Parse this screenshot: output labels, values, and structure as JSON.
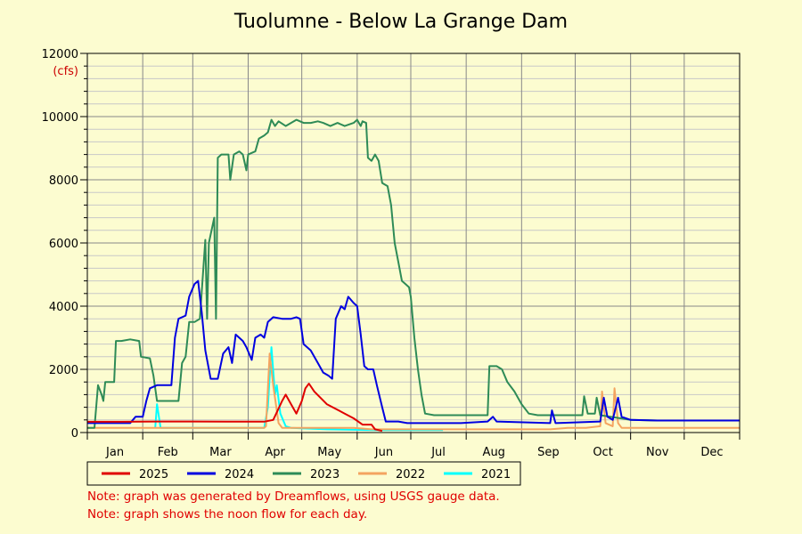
{
  "chart_data": {
    "type": "line",
    "title": "Tuolumne - Below La Grange Dam",
    "ylabel": "(cfs)",
    "ylim": [
      0,
      12000
    ],
    "yticks": [
      0,
      2000,
      4000,
      6000,
      8000,
      10000,
      12000
    ],
    "xlabels": [
      "Jan",
      "Feb",
      "Mar",
      "Apr",
      "May",
      "Jun",
      "Jul",
      "Aug",
      "Sep",
      "Oct",
      "Nov",
      "Dec"
    ],
    "grid": true,
    "legend_position": "bottom",
    "x_unit": "day of year",
    "xlim": [
      1,
      366
    ],
    "series": [
      {
        "name": "2025",
        "color": "#e00000",
        "points": [
          [
            1,
            340
          ],
          [
            20,
            340
          ],
          [
            40,
            350
          ],
          [
            60,
            350
          ],
          [
            80,
            345
          ],
          [
            100,
            345
          ],
          [
            105,
            400
          ],
          [
            110,
            1000
          ],
          [
            112,
            1200
          ],
          [
            115,
            900
          ],
          [
            118,
            600
          ],
          [
            121,
            1000
          ],
          [
            123,
            1400
          ],
          [
            125,
            1550
          ],
          [
            128,
            1300
          ],
          [
            135,
            900
          ],
          [
            145,
            600
          ],
          [
            150,
            450
          ],
          [
            155,
            250
          ],
          [
            160,
            250
          ],
          [
            162,
            100
          ],
          [
            166,
            50
          ]
        ]
      },
      {
        "name": "2024",
        "color": "#0000e0",
        "points": [
          [
            1,
            300
          ],
          [
            25,
            300
          ],
          [
            28,
            500
          ],
          [
            32,
            500
          ],
          [
            34,
            1000
          ],
          [
            36,
            1400
          ],
          [
            40,
            1500
          ],
          [
            48,
            1500
          ],
          [
            50,
            3000
          ],
          [
            52,
            3600
          ],
          [
            56,
            3700
          ],
          [
            58,
            4300
          ],
          [
            61,
            4700
          ],
          [
            63,
            4800
          ],
          [
            65,
            3800
          ],
          [
            67,
            2600
          ],
          [
            70,
            1700
          ],
          [
            74,
            1700
          ],
          [
            77,
            2500
          ],
          [
            80,
            2700
          ],
          [
            82,
            2200
          ],
          [
            84,
            3100
          ],
          [
            88,
            2900
          ],
          [
            90,
            2700
          ],
          [
            93,
            2300
          ],
          [
            95,
            3000
          ],
          [
            98,
            3100
          ],
          [
            100,
            3000
          ],
          [
            102,
            3500
          ],
          [
            105,
            3650
          ],
          [
            110,
            3600
          ],
          [
            115,
            3600
          ],
          [
            118,
            3650
          ],
          [
            120,
            3600
          ],
          [
            122,
            2800
          ],
          [
            126,
            2600
          ],
          [
            130,
            2200
          ],
          [
            133,
            1900
          ],
          [
            136,
            1800
          ],
          [
            138,
            1700
          ],
          [
            140,
            3600
          ],
          [
            143,
            4000
          ],
          [
            145,
            3900
          ],
          [
            147,
            4300
          ],
          [
            150,
            4100
          ],
          [
            152,
            4000
          ],
          [
            154,
            3100
          ],
          [
            156,
            2100
          ],
          [
            158,
            2000
          ],
          [
            161,
            2000
          ],
          [
            163,
            1500
          ],
          [
            166,
            800
          ],
          [
            168,
            350
          ],
          [
            175,
            350
          ],
          [
            180,
            300
          ],
          [
            210,
            300
          ],
          [
            225,
            350
          ],
          [
            228,
            500
          ],
          [
            230,
            350
          ],
          [
            260,
            300
          ],
          [
            261,
            700
          ],
          [
            263,
            300
          ],
          [
            288,
            350
          ],
          [
            290,
            1100
          ],
          [
            292,
            500
          ],
          [
            295,
            400
          ],
          [
            298,
            1100
          ],
          [
            300,
            500
          ],
          [
            305,
            400
          ],
          [
            320,
            380
          ],
          [
            340,
            380
          ],
          [
            366,
            380
          ]
        ]
      },
      {
        "name": "2023",
        "color": "#2e8b57",
        "points": [
          [
            1,
            150
          ],
          [
            5,
            150
          ],
          [
            7,
            1500
          ],
          [
            9,
            1200
          ],
          [
            10,
            1000
          ],
          [
            11,
            1600
          ],
          [
            14,
            1600
          ],
          [
            16,
            1600
          ],
          [
            17,
            2900
          ],
          [
            20,
            2900
          ],
          [
            25,
            2950
          ],
          [
            30,
            2900
          ],
          [
            31,
            2400
          ],
          [
            36,
            2350
          ],
          [
            38,
            1800
          ],
          [
            40,
            1000
          ],
          [
            42,
            1000
          ],
          [
            48,
            1000
          ],
          [
            52,
            1000
          ],
          [
            54,
            2200
          ],
          [
            56,
            2400
          ],
          [
            58,
            3500
          ],
          [
            61,
            3500
          ],
          [
            64,
            3600
          ],
          [
            67,
            6100
          ],
          [
            68,
            3600
          ],
          [
            69,
            6000
          ],
          [
            72,
            6800
          ],
          [
            73,
            3600
          ],
          [
            74,
            8700
          ],
          [
            76,
            8800
          ],
          [
            80,
            8800
          ],
          [
            81,
            8000
          ],
          [
            83,
            8800
          ],
          [
            86,
            8900
          ],
          [
            88,
            8800
          ],
          [
            90,
            8300
          ],
          [
            91,
            8800
          ],
          [
            95,
            8900
          ],
          [
            97,
            9300
          ],
          [
            100,
            9400
          ],
          [
            102,
            9500
          ],
          [
            104,
            9900
          ],
          [
            106,
            9700
          ],
          [
            108,
            9850
          ],
          [
            112,
            9700
          ],
          [
            115,
            9800
          ],
          [
            118,
            9900
          ],
          [
            122,
            9800
          ],
          [
            126,
            9800
          ],
          [
            130,
            9850
          ],
          [
            133,
            9800
          ],
          [
            137,
            9700
          ],
          [
            141,
            9800
          ],
          [
            145,
            9700
          ],
          [
            150,
            9800
          ],
          [
            152,
            9900
          ],
          [
            154,
            9700
          ],
          [
            155,
            9850
          ],
          [
            157,
            9800
          ],
          [
            158,
            8700
          ],
          [
            160,
            8600
          ],
          [
            162,
            8800
          ],
          [
            164,
            8600
          ],
          [
            166,
            7900
          ],
          [
            169,
            7800
          ],
          [
            171,
            7200
          ],
          [
            173,
            6000
          ],
          [
            175,
            5400
          ],
          [
            177,
            4800
          ],
          [
            179,
            4700
          ],
          [
            181,
            4600
          ],
          [
            182,
            4300
          ],
          [
            184,
            3000
          ],
          [
            186,
            2000
          ],
          [
            188,
            1200
          ],
          [
            190,
            600
          ],
          [
            195,
            550
          ],
          [
            220,
            550
          ],
          [
            225,
            550
          ],
          [
            226,
            2100
          ],
          [
            230,
            2100
          ],
          [
            233,
            2000
          ],
          [
            236,
            1600
          ],
          [
            240,
            1300
          ],
          [
            244,
            900
          ],
          [
            248,
            600
          ],
          [
            253,
            550
          ],
          [
            278,
            550
          ],
          [
            279,
            1150
          ],
          [
            281,
            600
          ],
          [
            285,
            600
          ],
          [
            286,
            1100
          ],
          [
            288,
            550
          ],
          [
            305,
            400
          ],
          [
            320,
            380
          ],
          [
            340,
            380
          ],
          [
            366,
            380
          ]
        ]
      },
      {
        "name": "2022",
        "color": "#f4a460",
        "points": [
          [
            1,
            150
          ],
          [
            60,
            150
          ],
          [
            100,
            150
          ],
          [
            101,
            200
          ],
          [
            103,
            2500
          ],
          [
            105,
            1500
          ],
          [
            108,
            300
          ],
          [
            110,
            150
          ],
          [
            150,
            150
          ],
          [
            160,
            100
          ],
          [
            170,
            100
          ],
          [
            200,
            100
          ],
          [
            260,
            100
          ],
          [
            270,
            150
          ],
          [
            280,
            150
          ],
          [
            288,
            200
          ],
          [
            289,
            1300
          ],
          [
            291,
            300
          ],
          [
            295,
            200
          ],
          [
            296,
            1400
          ],
          [
            298,
            300
          ],
          [
            300,
            150
          ],
          [
            366,
            150
          ]
        ]
      },
      {
        "name": "2021",
        "color": "#00ffff",
        "points": [
          [
            39,
            150
          ],
          [
            40,
            900
          ],
          [
            42,
            150
          ],
          [
            95,
            150
          ],
          [
            100,
            150
          ],
          [
            102,
            800
          ],
          [
            104,
            2700
          ],
          [
            106,
            1200
          ],
          [
            107,
            1500
          ],
          [
            109,
            600
          ],
          [
            112,
            200
          ],
          [
            115,
            150
          ],
          [
            135,
            100
          ],
          [
            160,
            80
          ],
          [
            200,
            80
          ]
        ]
      }
    ]
  },
  "notes": [
    "Note: graph was generated by Dreamflows, using USGS gauge data.",
    "Note: graph shows the noon flow for each day."
  ]
}
